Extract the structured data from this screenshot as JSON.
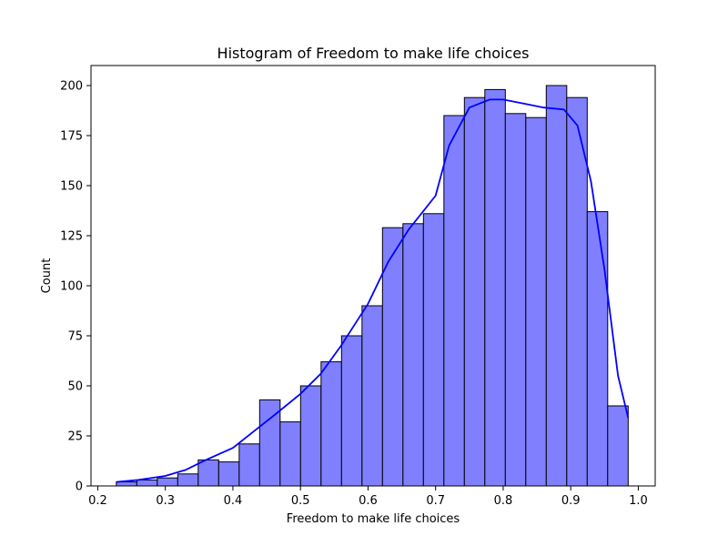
{
  "chart_data": {
    "type": "bar",
    "title": "Histogram of Freedom to make life choices",
    "xlabel": "Freedom to make life choices",
    "ylabel": "Count",
    "xlim": [
      0.19,
      1.025
    ],
    "ylim": [
      0,
      210
    ],
    "x_ticks": [
      "0.2",
      "0.3",
      "0.4",
      "0.5",
      "0.6",
      "0.7",
      "0.8",
      "0.9",
      "1.0"
    ],
    "y_ticks": [
      "0",
      "25",
      "50",
      "75",
      "100",
      "125",
      "150",
      "175",
      "200"
    ],
    "bin_edges": [
      0.2275,
      0.2578,
      0.2881,
      0.3184,
      0.3487,
      0.379,
      0.4093,
      0.4396,
      0.4699,
      0.5002,
      0.5305,
      0.5608,
      0.5911,
      0.6214,
      0.6517,
      0.682,
      0.7123,
      0.7426,
      0.7729,
      0.8032,
      0.8335,
      0.8638,
      0.8941,
      0.9244,
      0.9547,
      0.985
    ],
    "values": [
      2,
      3,
      4,
      6,
      13,
      12,
      21,
      43,
      32,
      50,
      62,
      75,
      90,
      129,
      131,
      136,
      185,
      194,
      198,
      186,
      184,
      200,
      194,
      137,
      40
    ],
    "kde": {
      "x": [
        0.2275,
        0.26,
        0.3,
        0.33,
        0.36,
        0.4,
        0.43,
        0.46,
        0.5,
        0.53,
        0.56,
        0.6,
        0.63,
        0.66,
        0.7,
        0.72,
        0.75,
        0.78,
        0.8,
        0.83,
        0.86,
        0.89,
        0.91,
        0.93,
        0.95,
        0.97,
        0.985
      ],
      "y": [
        2,
        3,
        5,
        8,
        13,
        19,
        27,
        35,
        46,
        56,
        70,
        91,
        112,
        128,
        145,
        170,
        189,
        193,
        193,
        191,
        189,
        188,
        180,
        152,
        108,
        55,
        34
      ]
    },
    "colors": {
      "bar_fill": "#8080ff",
      "bar_edge": "#000000",
      "kde_line": "#0000ff"
    },
    "grid": false,
    "legend": "none"
  }
}
